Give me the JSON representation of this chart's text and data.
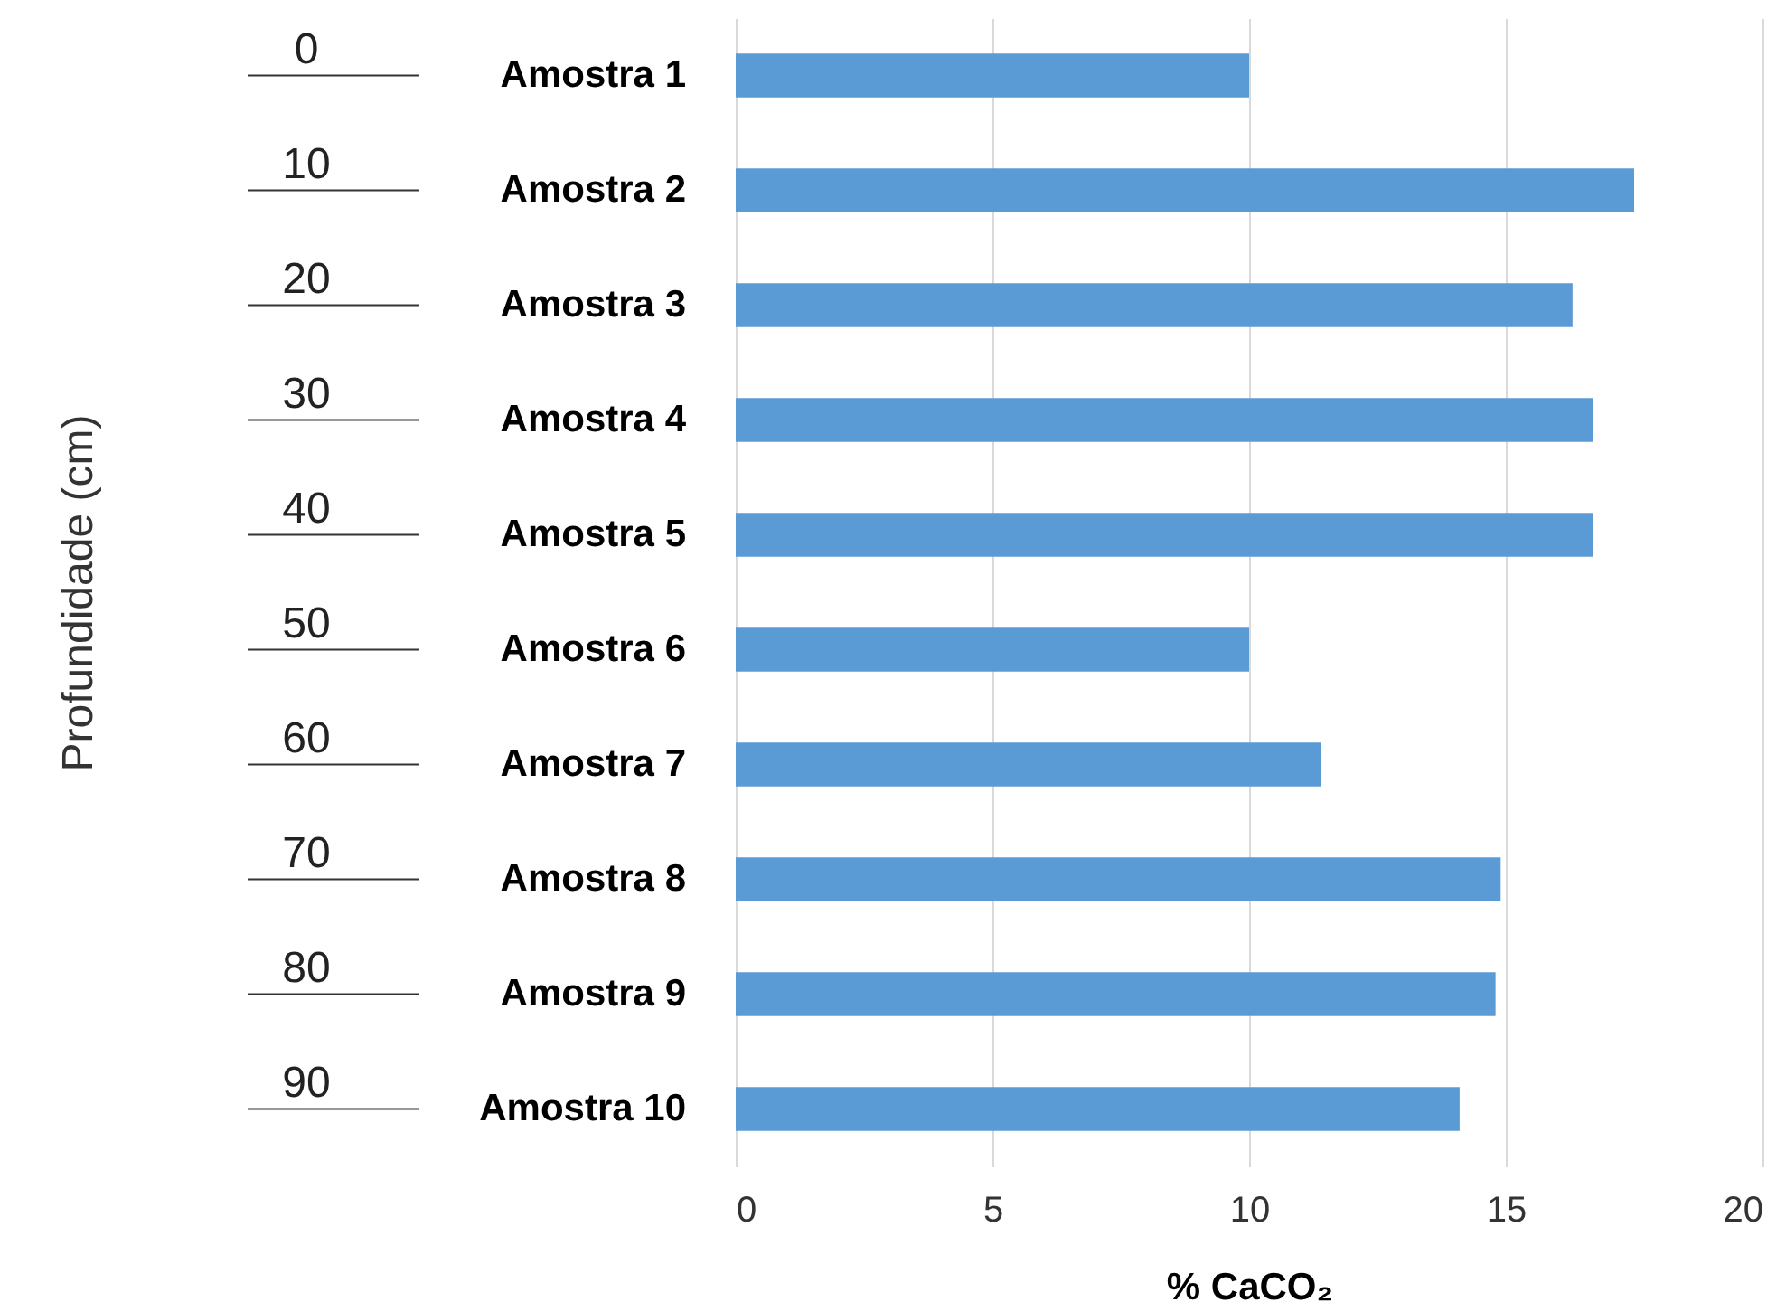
{
  "chart_data": {
    "type": "bar",
    "orientation": "horizontal",
    "xlabel": "% CaCO₂",
    "categories": [
      "Amostra 1",
      "Amostra 2",
      "Amostra 3",
      "Amostra 4",
      "Amostra 5",
      "Amostra 6",
      "Amostra 7",
      "Amostra 8",
      "Amostra 9",
      "Amostra 10"
    ],
    "values": [
      10.0,
      17.5,
      16.3,
      16.7,
      16.7,
      10.0,
      11.4,
      14.9,
      14.8,
      14.1
    ],
    "color": "#5b9bd5",
    "xlim": [
      0,
      20
    ],
    "xticks": [
      0,
      5,
      10,
      15,
      20
    ],
    "grid": "x",
    "annotations": [
      "Profundidade (cm)",
      "0",
      "10",
      "20",
      "30",
      "40",
      "50",
      "60",
      "70",
      "80",
      "90"
    ]
  }
}
